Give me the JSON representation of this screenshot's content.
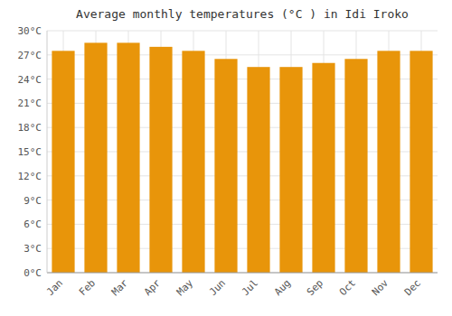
{
  "chart_data": {
    "type": "bar",
    "title": "Average monthly temperatures (°C ) in Idi Iroko",
    "categories": [
      "Jan",
      "Feb",
      "Mar",
      "Apr",
      "May",
      "Jun",
      "Jul",
      "Aug",
      "Sep",
      "Oct",
      "Nov",
      "Dec"
    ],
    "values": [
      27.5,
      28.5,
      28.5,
      28.0,
      27.5,
      26.5,
      25.5,
      25.5,
      26.0,
      26.5,
      27.5,
      27.5
    ],
    "color": "#E8950A",
    "ylim": [
      0,
      30
    ],
    "yticks": [
      {
        "value": 0,
        "label": "0°C"
      },
      {
        "value": 3,
        "label": "3°C"
      },
      {
        "value": 6,
        "label": "6°C"
      },
      {
        "value": 9,
        "label": "9°C"
      },
      {
        "value": 12,
        "label": "12°C"
      },
      {
        "value": 15,
        "label": "15°C"
      },
      {
        "value": 18,
        "label": "18°C"
      },
      {
        "value": 21,
        "label": "21°C"
      },
      {
        "value": 24,
        "label": "24°C"
      },
      {
        "value": 27,
        "label": "27°C"
      },
      {
        "value": 30,
        "label": "30°C"
      }
    ],
    "grid": true
  }
}
